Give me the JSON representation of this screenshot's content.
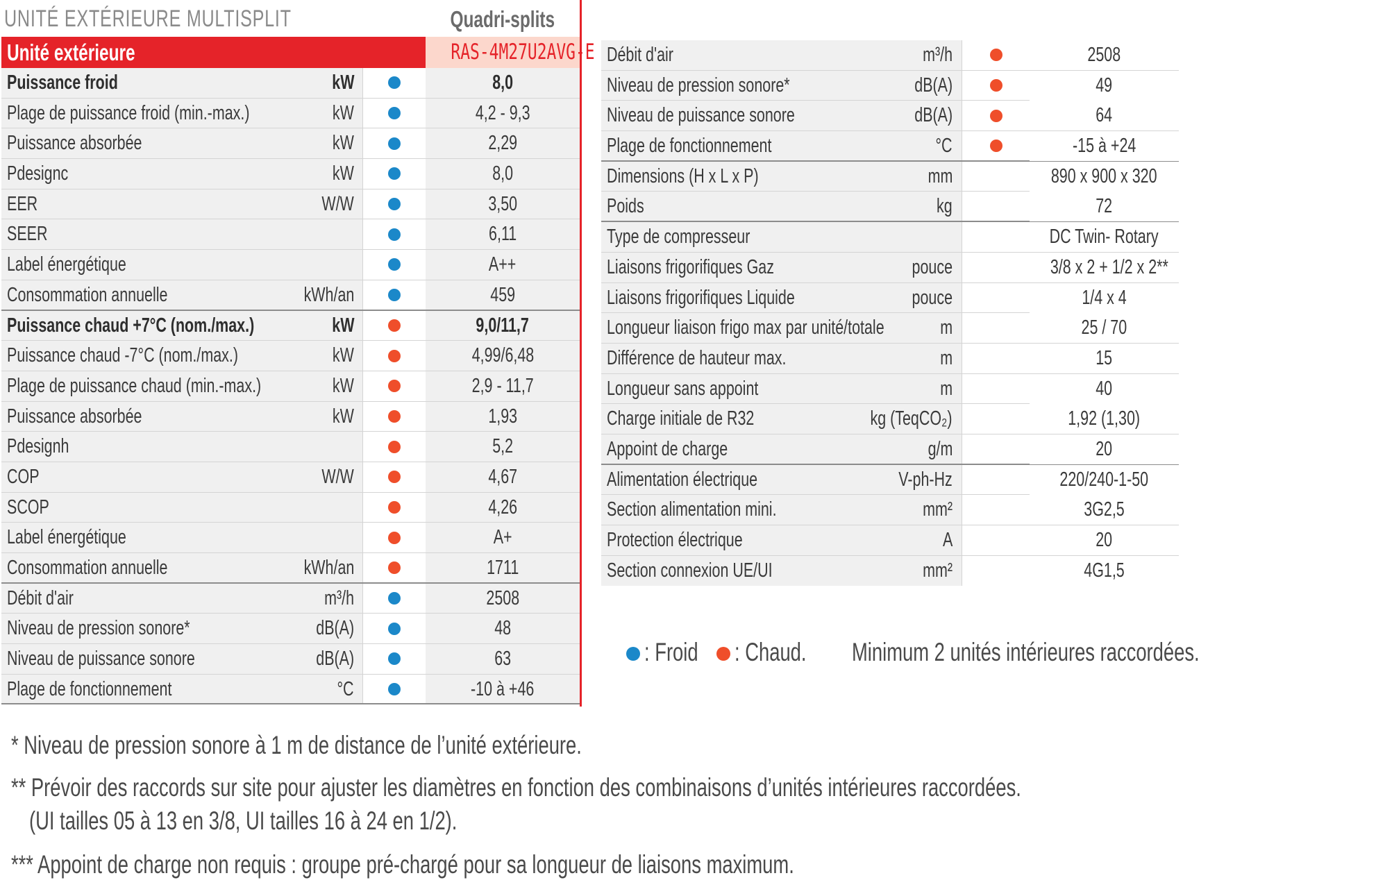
{
  "header": {
    "title": "UNITÉ EXTÉRIEURE MULTISPLIT",
    "series": "Quadri-splits"
  },
  "left_table": {
    "header_label": "Unité extérieure",
    "model": "RAS-4M27U2AVG-E",
    "rows": [
      {
        "label": "Puissance froid",
        "unit": "kW",
        "mode": "froid",
        "value": "8,0",
        "bold": true
      },
      {
        "label": "Plage de puissance froid (min.-max.)",
        "unit": "kW",
        "mode": "froid",
        "value": "4,2 - 9,3"
      },
      {
        "label": "Puissance absorbée",
        "unit": "kW",
        "mode": "froid",
        "value": "2,29"
      },
      {
        "label": "Pdesignc",
        "unit": "kW",
        "mode": "froid",
        "value": "8,0"
      },
      {
        "label": "EER",
        "unit": "W/W",
        "mode": "froid",
        "value": "3,50"
      },
      {
        "label": "SEER",
        "unit": "",
        "mode": "froid",
        "value": "6,11"
      },
      {
        "label": "Label énergétique",
        "unit": "",
        "mode": "froid",
        "value": "A++"
      },
      {
        "label": "Consommation annuelle",
        "unit": "kWh/an",
        "mode": "froid",
        "value": "459",
        "sep": true
      },
      {
        "label": "Puissance chaud +7°C (nom./max.)",
        "unit": "kW",
        "mode": "chaud",
        "value": "9,0/11,7",
        "bold": true
      },
      {
        "label": "Puissance chaud -7°C (nom./max.)",
        "unit": "kW",
        "mode": "chaud",
        "value": "4,99/6,48"
      },
      {
        "label": "Plage de puissance chaud (min.-max.)",
        "unit": "kW",
        "mode": "chaud",
        "value": "2,9 - 11,7"
      },
      {
        "label": "Puissance absorbée",
        "unit": "kW",
        "mode": "chaud",
        "value": "1,93"
      },
      {
        "label": "Pdesignh",
        "unit": "",
        "mode": "chaud",
        "value": "5,2"
      },
      {
        "label": "COP",
        "unit": "W/W",
        "mode": "chaud",
        "value": "4,67"
      },
      {
        "label": "SCOP",
        "unit": "",
        "mode": "chaud",
        "value": "4,26"
      },
      {
        "label": "Label énergétique",
        "unit": "",
        "mode": "chaud",
        "value": "A+"
      },
      {
        "label": "Consommation annuelle",
        "unit": "kWh/an",
        "mode": "chaud",
        "value": "1711",
        "sep": true
      },
      {
        "label": "Débit d'air",
        "unit": "m³/h",
        "mode": "froid",
        "value": "2508"
      },
      {
        "label": "Niveau de pression sonore*",
        "unit": "dB(A)",
        "mode": "froid",
        "value": "48"
      },
      {
        "label": "Niveau de puissance sonore",
        "unit": "dB(A)",
        "mode": "froid",
        "value": "63"
      },
      {
        "label": "Plage de fonctionnement",
        "unit": "°C",
        "mode": "froid",
        "value": "-10 à +46",
        "sep": true
      }
    ]
  },
  "right_table": {
    "rows": [
      {
        "label": "Débit d'air",
        "unit": "m³/h",
        "mode": "chaud",
        "value": "2508"
      },
      {
        "label": "Niveau de pression sonore*",
        "unit": "dB(A)",
        "mode": "chaud",
        "value": "49"
      },
      {
        "label": "Niveau de puissance sonore",
        "unit": "dB(A)",
        "mode": "chaud",
        "value": "64"
      },
      {
        "label": "Plage de fonctionnement",
        "unit": "°C",
        "mode": "chaud",
        "value": "-15 à +24",
        "sep": true
      },
      {
        "label": "Dimensions (H x L x P)",
        "unit": "mm",
        "mode": "",
        "value": "890 x 900 x 320"
      },
      {
        "label": "Poids",
        "unit": "kg",
        "mode": "",
        "value": "72",
        "sep": true
      },
      {
        "label": "Type de compresseur",
        "unit": "",
        "mode": "",
        "value": "DC Twin- Rotary"
      },
      {
        "label": "Liaisons frigorifiques Gaz",
        "unit": "pouce",
        "mode": "",
        "value": "3/8 x 2 + 1/2 x 2**"
      },
      {
        "label": "Liaisons frigorifiques Liquide",
        "unit": "pouce",
        "mode": "",
        "value": "1/4 x 4"
      },
      {
        "label": "Longueur liaison frigo max par unité/totale",
        "unit": "m",
        "mode": "",
        "value": "25 / 70"
      },
      {
        "label": "Différence de hauteur max.",
        "unit": "m",
        "mode": "",
        "value": "15"
      },
      {
        "label": "Longueur sans appoint",
        "unit": "m",
        "mode": "",
        "value": "40"
      },
      {
        "label": "Charge initiale de R32",
        "unit": "kg (TeqCO₂)",
        "mode": "",
        "value": "1,92 (1,30)"
      },
      {
        "label": "Appoint de charge",
        "unit": "g/m",
        "mode": "",
        "value": "20",
        "sep": true
      },
      {
        "label": "Alimentation électrique",
        "unit": "V-ph-Hz",
        "mode": "",
        "value": "220/240-1-50"
      },
      {
        "label": "Section alimentation mini.",
        "unit": "mm²",
        "mode": "",
        "value": "3G2,5"
      },
      {
        "label": "Protection électrique",
        "unit": "A",
        "mode": "",
        "value": "20"
      },
      {
        "label": "Section connexion UE/UI",
        "unit": "mm²",
        "mode": "",
        "value": "4G1,5",
        "last": true
      }
    ]
  },
  "legend": {
    "froid": ": Froid",
    "chaud": ": Chaud.",
    "note": "Minimum 2 unités intérieures raccordées."
  },
  "colors": {
    "froid": "#1b88c9",
    "chaud": "#ef4e2a",
    "brand_red": "#e52329"
  },
  "footnotes": {
    "note1": "* Niveau de pression sonore à 1 m de distance de l’unité extérieure.",
    "note2_line1": "** Prévoir des raccords sur site pour ajuster les diamètres en fonction des combinaisons d’unités intérieures raccordées.",
    "note2_line2": "(UI tailles 05 à 13 en 3/8, UI tailles 16 à 24 en 1/2).",
    "note3": "*** Appoint de charge non requis : groupe pré-chargé pour sa longueur de liaisons maximum."
  }
}
